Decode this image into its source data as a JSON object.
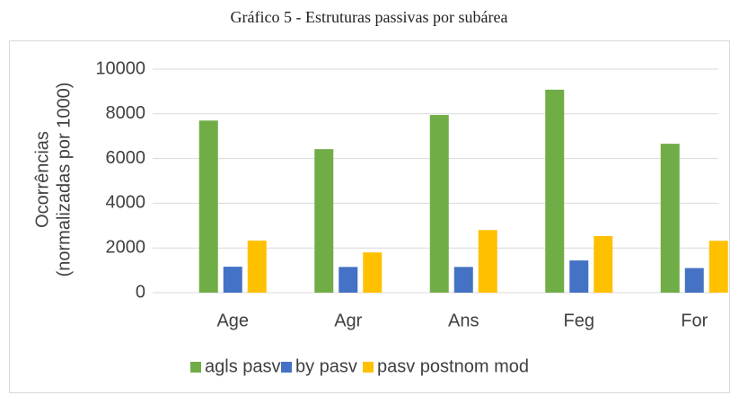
{
  "chart_data": {
    "type": "bar",
    "title": "Gráfico 5 - Estruturas passivas por subárea",
    "ylabel": [
      "Ocorrências",
      "(normalizadas por 1000)"
    ],
    "categories": [
      "Age",
      "Agr",
      "Ans",
      "Feg",
      "For"
    ],
    "series": [
      {
        "name": "agls pasv",
        "color": "#70ad47",
        "values": [
          7700,
          6420,
          7950,
          9080,
          6660
        ]
      },
      {
        "name": "by pasv",
        "color": "#4472c4",
        "values": [
          1160,
          1150,
          1150,
          1440,
          1100
        ]
      },
      {
        "name": "pasv postnom mod",
        "color": "#ffc000",
        "values": [
          2330,
          1800,
          2800,
          2530,
          2320
        ]
      }
    ],
    "ylim": [
      0,
      10000
    ],
    "yticks": [
      0,
      2000,
      4000,
      6000,
      8000,
      10000
    ],
    "grid": true
  }
}
